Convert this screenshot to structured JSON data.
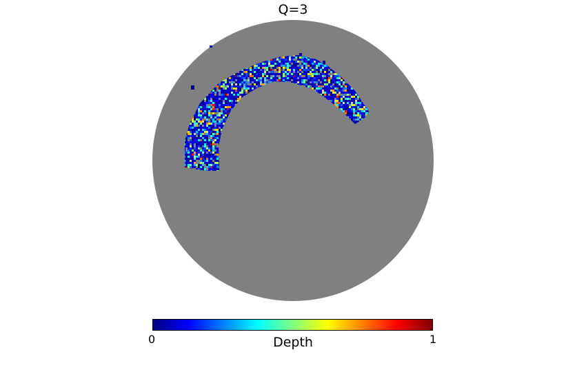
{
  "title": "Q=3",
  "colorbar": {
    "label": "Depth",
    "min_label": "0",
    "max_label": "1",
    "colormap": "jet",
    "stops": [
      "#00007f",
      "#0000ff",
      "#007fff",
      "#00ffff",
      "#7fff7f",
      "#ffff00",
      "#ff7f00",
      "#ff0000",
      "#7f0000"
    ]
  },
  "map": {
    "projection": "orthographic",
    "background_color": "#808080",
    "footprint_shape": "arc-shaped survey region in the upper-left quadrant",
    "value_range": [
      0,
      1
    ]
  }
}
